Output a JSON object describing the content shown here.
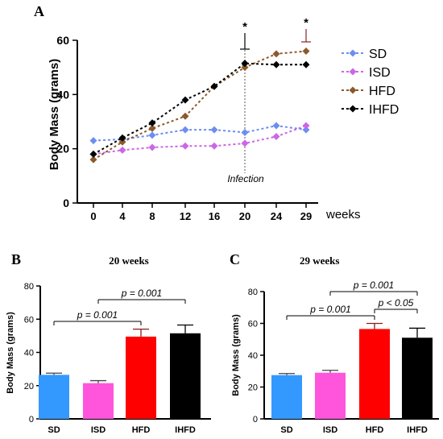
{
  "chart_data": [
    {
      "panel": "A",
      "type": "line",
      "ylabel": "Body Mass (grams)",
      "xlabel": "weeks",
      "x": [
        0,
        4,
        8,
        12,
        16,
        20,
        24,
        29
      ],
      "ylim": [
        0,
        60
      ],
      "yticks": [
        0,
        20,
        40,
        60
      ],
      "series": [
        {
          "name": "SD",
          "color": "#6c8ef0",
          "values": [
            23,
            23.5,
            25,
            27,
            27,
            26,
            28.5,
            27
          ]
        },
        {
          "name": "ISD",
          "color": "#cc66e6",
          "values": [
            18,
            19.5,
            20.5,
            21,
            21,
            22,
            24.5,
            28.5
          ]
        },
        {
          "name": "HFD",
          "color": "#8b5a2b",
          "values": [
            16,
            22.5,
            27.5,
            32,
            43,
            50,
            55,
            56
          ]
        },
        {
          "name": "IHFD",
          "color": "#000000",
          "values": [
            18,
            24,
            29.5,
            38,
            43,
            51.5,
            51,
            51
          ]
        }
      ],
      "annotation": "Infection",
      "annotation_x": 20,
      "significance": [
        {
          "x": 20,
          "marker": "*"
        },
        {
          "x": 29,
          "marker": "*"
        }
      ],
      "legend": "right"
    },
    {
      "panel": "B",
      "type": "bar",
      "title": "20 weeks",
      "ylabel": "Body Mass (grams)",
      "categories": [
        "SD",
        "ISD",
        "HFD",
        "IHFD"
      ],
      "values": [
        26.5,
        21.5,
        49.5,
        51.5
      ],
      "errors": [
        1,
        1.5,
        4.5,
        5
      ],
      "colors": [
        "#3399ff",
        "#ff55dd",
        "#ff0000",
        "#000000"
      ],
      "ylim": [
        0,
        80
      ],
      "yticks": [
        0,
        20,
        40,
        60,
        80
      ],
      "comparisons": [
        {
          "from": 0,
          "to": 2,
          "label": "p = 0.001"
        },
        {
          "from": 1,
          "to": 3,
          "label": "p = 0.001"
        }
      ]
    },
    {
      "panel": "C",
      "type": "bar",
      "title": "29 weeks",
      "ylabel": "Body Mass (grams)",
      "categories": [
        "SD",
        "ISD",
        "HFD",
        "IHFD"
      ],
      "values": [
        27.5,
        29,
        56.5,
        51
      ],
      "errors": [
        1,
        1.5,
        3.5,
        6
      ],
      "colors": [
        "#3399ff",
        "#ff55dd",
        "#ff0000",
        "#000000"
      ],
      "ylim": [
        0,
        80
      ],
      "yticks": [
        0,
        20,
        40,
        60,
        80
      ],
      "comparisons": [
        {
          "from": 0,
          "to": 2,
          "label": "p = 0.001"
        },
        {
          "from": 1,
          "to": 3,
          "label": "p = 0.001"
        },
        {
          "from": 2,
          "to": 3,
          "label": "p < 0.05"
        }
      ]
    }
  ]
}
